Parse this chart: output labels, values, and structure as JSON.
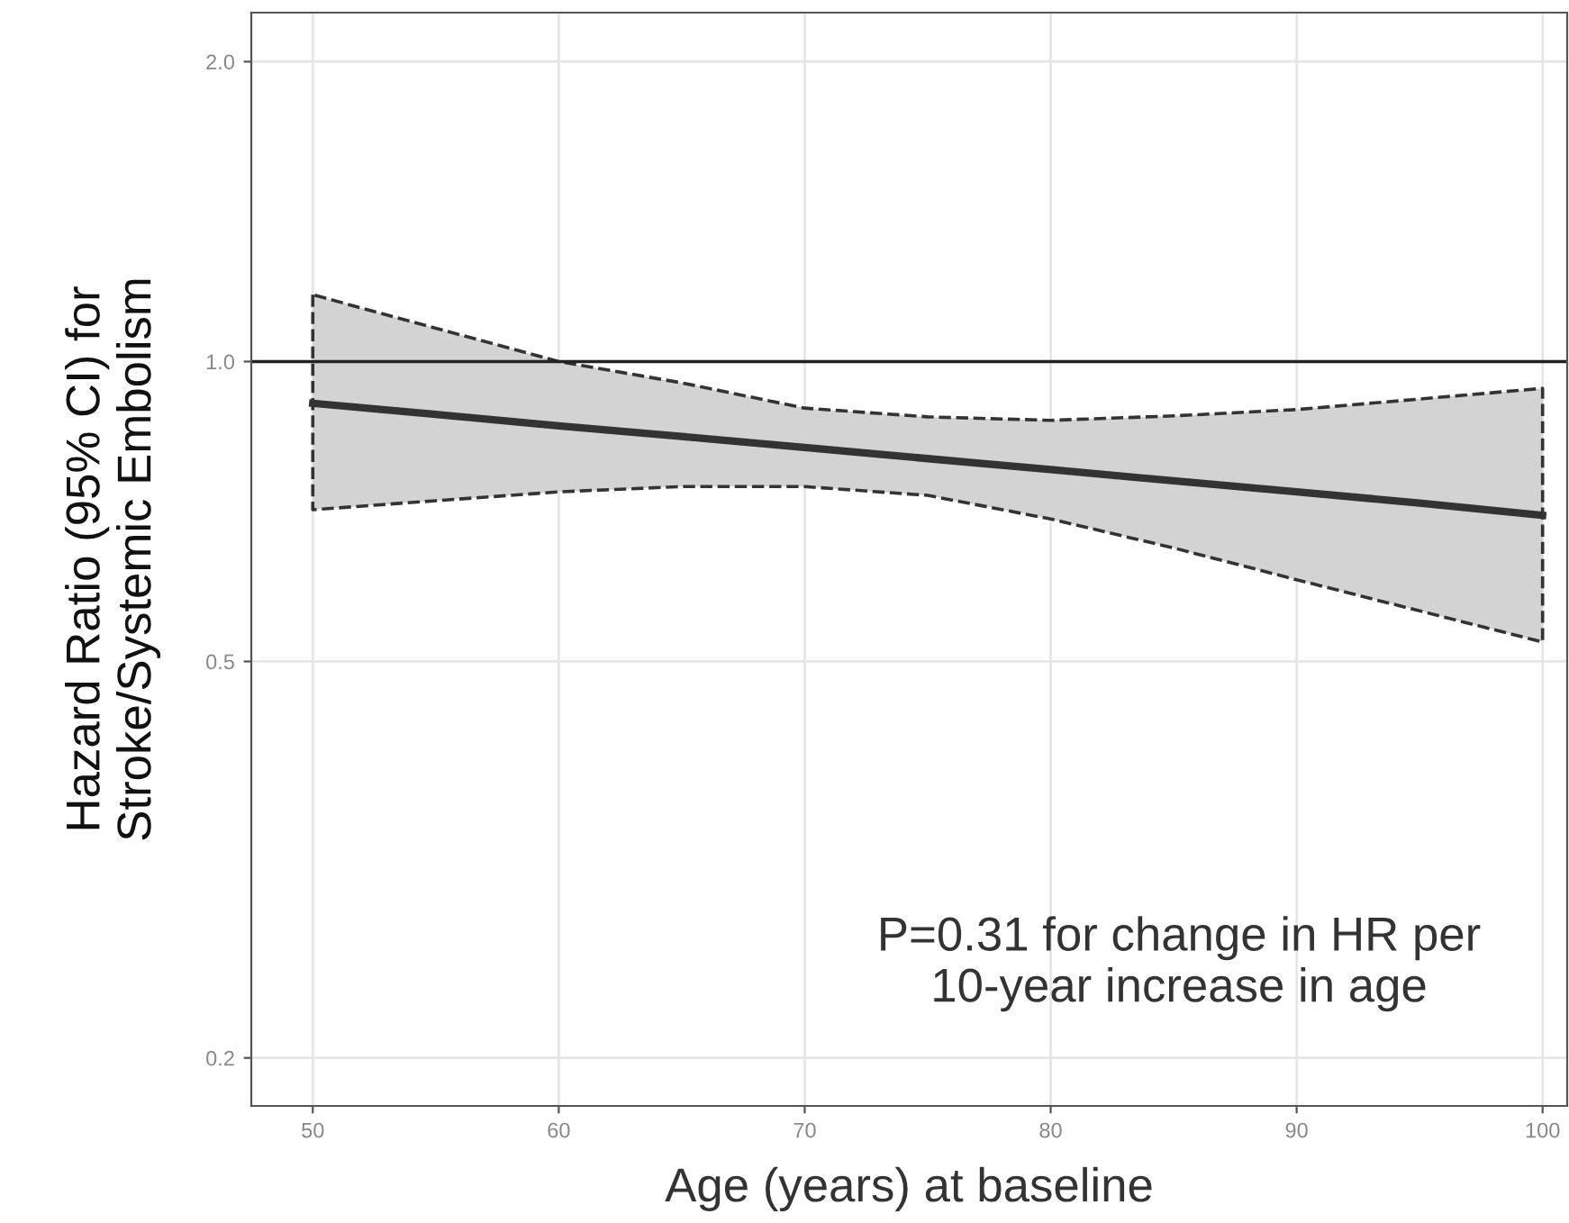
{
  "chart_data": {
    "type": "line",
    "xlabel": "Age (years) at baseline",
    "ylabel": "Hazard Ratio (95% CI) for\nStroke/Systemic Embolism",
    "x": [
      50,
      55,
      60,
      65,
      70,
      75,
      80,
      85,
      90,
      95,
      100
    ],
    "series": [
      {
        "color": "#333333",
        "values": [
          0.908,
          0.885,
          0.862,
          0.841,
          0.82,
          0.799,
          0.779,
          0.759,
          0.74,
          0.721,
          0.701
        ],
        "lower": [
          0.71,
          0.725,
          0.74,
          0.749,
          0.749,
          0.734,
          0.695,
          0.65,
          0.604,
          0.562,
          0.523
        ],
        "upper": [
          1.167,
          1.08,
          1.0,
          0.952,
          0.898,
          0.88,
          0.873,
          0.882,
          0.895,
          0.917,
          0.94
        ]
      }
    ],
    "log": "y",
    "xlim": [
      47.5,
      101
    ],
    "ylim": [
      0.179,
      2.24
    ],
    "xticks": [
      50,
      60,
      70,
      80,
      90,
      100
    ],
    "yticks": [
      {
        "value": 0.2,
        "label": "0.2"
      },
      {
        "value": 0.5,
        "label": "0.5"
      },
      {
        "value": 1,
        "label": "1.0"
      },
      {
        "value": 2,
        "label": "2.0"
      }
    ],
    "ref_lines": [
      {
        "axis": "y",
        "value": 1,
        "color": "#222222",
        "line_style": "solid"
      }
    ],
    "annotations": [
      "P=0.31 for change in HR per\n10-year increase in age"
    ],
    "grid": true,
    "line_style": "solid",
    "marker": "none",
    "legend": false
  }
}
